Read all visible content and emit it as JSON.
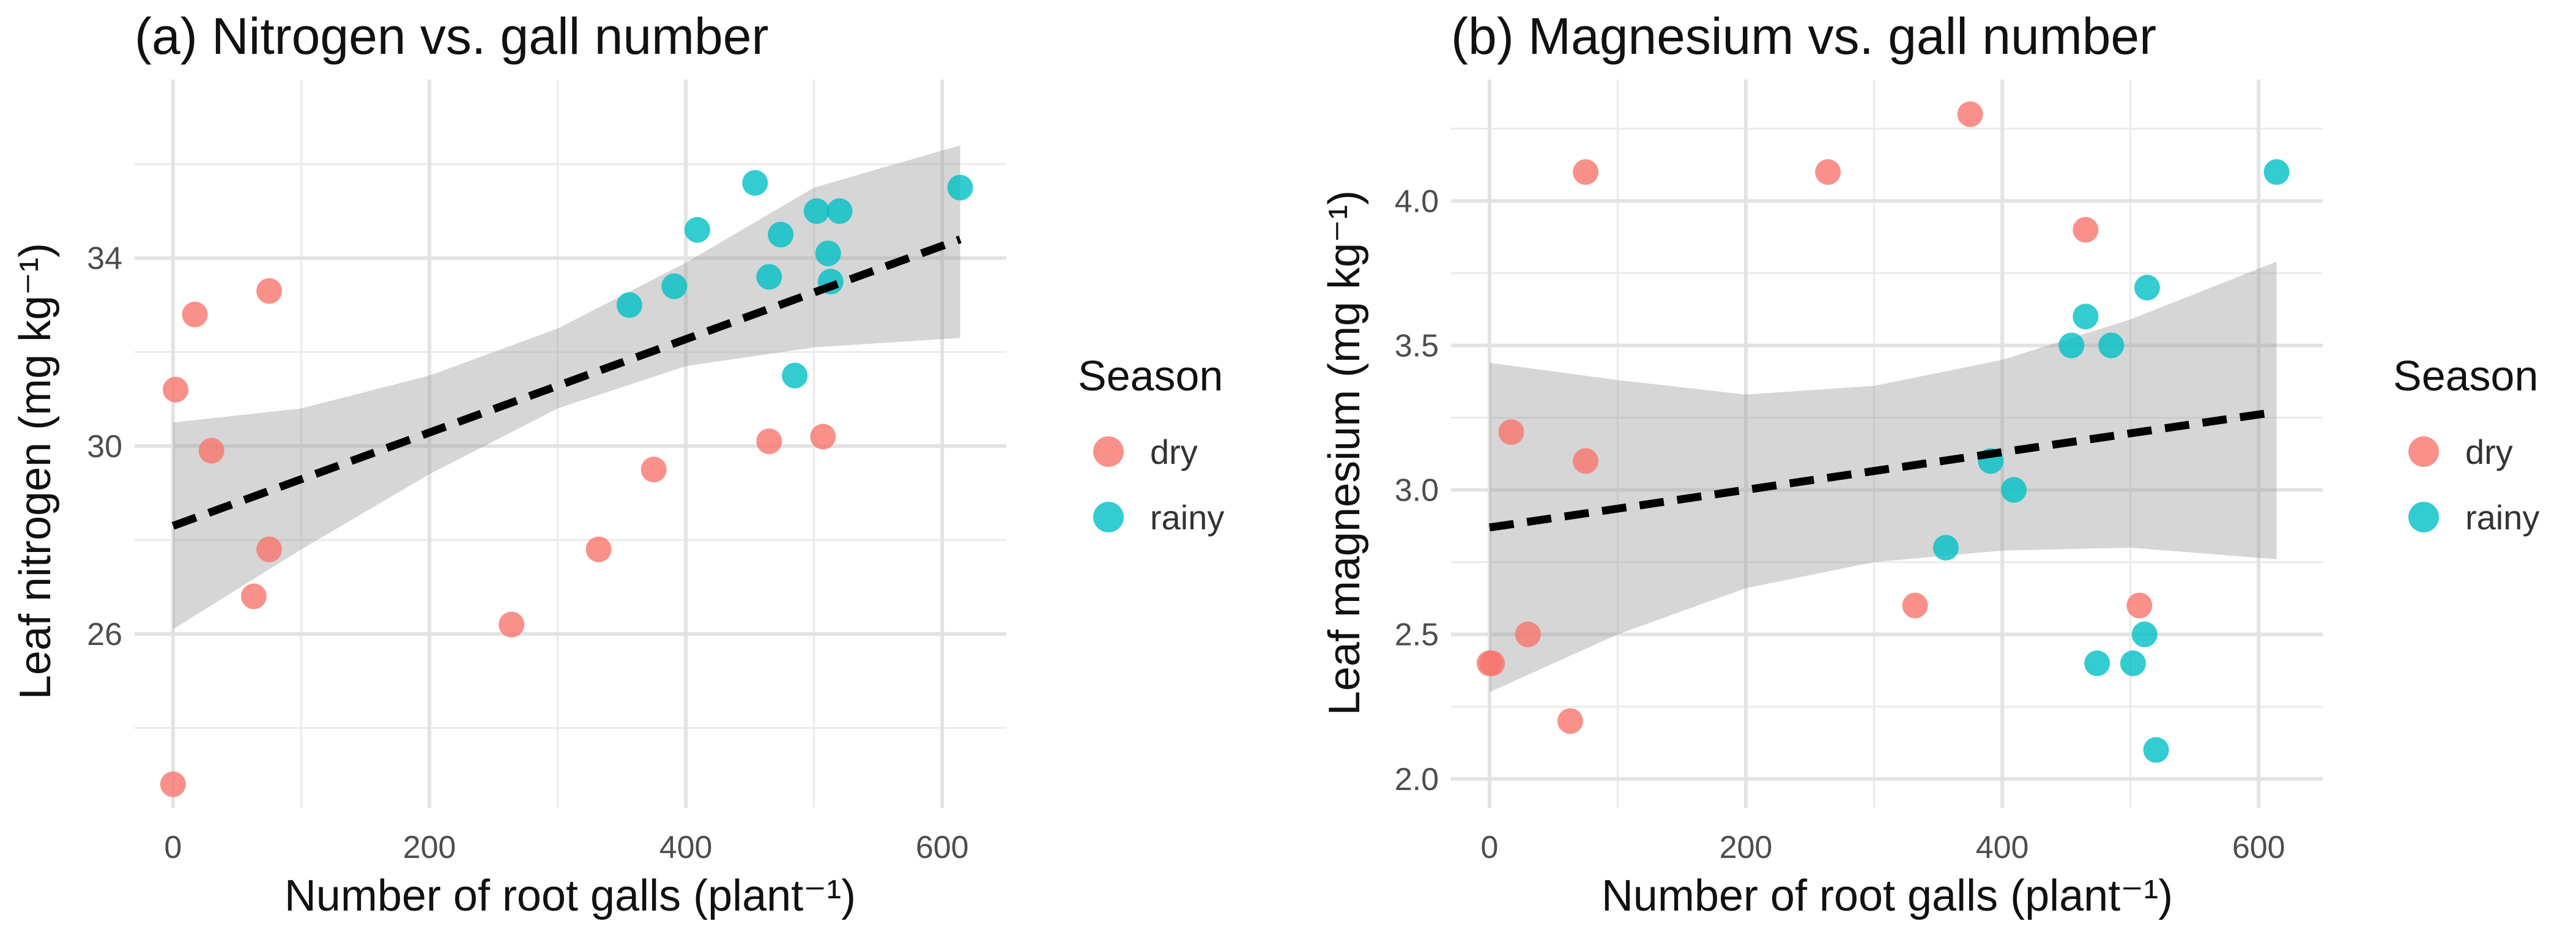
{
  "chart_data": [
    {
      "type": "scatter",
      "title": "(a) Nitrogen vs. gall number",
      "xlabel": "Number of root galls (plant⁻¹)",
      "ylabel": "Leaf nitrogen (mg kg⁻¹)",
      "xlim": [
        -30,
        650
      ],
      "ylim": [
        22.3,
        37.8
      ],
      "x_ticks": [
        0,
        200,
        400,
        600
      ],
      "x_tick_labels": [
        "0",
        "200",
        "400",
        "600"
      ],
      "y_ticks": [
        26,
        30,
        34
      ],
      "y_tick_labels": [
        "26",
        "30",
        "34"
      ],
      "grid": true,
      "legend": {
        "title": "Season",
        "position": "right",
        "entries": [
          "dry",
          "rainy"
        ]
      },
      "series": [
        {
          "name": "dry",
          "color": "#F8766D",
          "x": [
            0,
            2,
            17,
            30,
            63,
            75,
            75,
            264,
            332,
            375,
            465,
            507
          ],
          "y": [
            22.8,
            31.2,
            32.8,
            29.9,
            26.8,
            27.8,
            33.3,
            26.2,
            27.8,
            29.5,
            30.1,
            30.2
          ]
        },
        {
          "name": "rainy",
          "color": "#00BFC4",
          "x": [
            356,
            391,
            409,
            454,
            465,
            474,
            485,
            502,
            511,
            513,
            520,
            614
          ],
          "y": [
            33.0,
            33.4,
            34.6,
            35.6,
            33.6,
            34.5,
            31.5,
            35.0,
            34.1,
            33.5,
            35.0,
            35.5
          ]
        }
      ],
      "fit_line": {
        "style": "dashed",
        "x": [
          0,
          614
        ],
        "y": [
          28.3,
          34.4
        ]
      },
      "confidence_band": {
        "x": [
          0,
          100,
          200,
          300,
          400,
          500,
          614
        ],
        "lower": [
          26.1,
          27.8,
          29.4,
          30.8,
          31.7,
          32.1,
          32.3
        ],
        "upper": [
          30.5,
          30.8,
          31.5,
          32.5,
          33.9,
          35.5,
          36.4
        ]
      }
    },
    {
      "type": "scatter",
      "title": "(b) Magnesium vs. gall number",
      "xlabel": "Number of root galls (plant⁻¹)",
      "ylabel": "Leaf magnesium (mg kg⁻¹)",
      "xlim": [
        -30,
        650
      ],
      "ylim": [
        1.9,
        4.42
      ],
      "x_ticks": [
        0,
        200,
        400,
        600
      ],
      "x_tick_labels": [
        "0",
        "200",
        "400",
        "600"
      ],
      "y_ticks": [
        2.0,
        2.5,
        3.0,
        3.5,
        4.0
      ],
      "y_tick_labels": [
        "2.0",
        "2.5",
        "3.0",
        "3.5",
        "4.0"
      ],
      "grid": true,
      "legend": {
        "title": "Season",
        "position": "right",
        "entries": [
          "dry",
          "rainy"
        ]
      },
      "series": [
        {
          "name": "dry",
          "color": "#F8766D",
          "x": [
            0,
            2,
            17,
            30,
            63,
            75,
            75,
            264,
            332,
            375,
            465,
            507
          ],
          "y": [
            2.4,
            2.4,
            3.2,
            2.5,
            2.2,
            3.1,
            4.1,
            4.1,
            2.6,
            4.3,
            3.9,
            2.6
          ]
        },
        {
          "name": "rainy",
          "color": "#00BFC4",
          "x": [
            356,
            391,
            409,
            454,
            465,
            474,
            485,
            502,
            511,
            513,
            520,
            614
          ],
          "y": [
            2.8,
            3.1,
            3.0,
            3.5,
            3.6,
            2.4,
            3.5,
            2.4,
            2.5,
            3.7,
            2.1,
            4.1
          ]
        }
      ],
      "fit_line": {
        "style": "dashed",
        "x": [
          0,
          614
        ],
        "y": [
          2.87,
          3.27
        ]
      },
      "confidence_band": {
        "x": [
          0,
          100,
          200,
          300,
          400,
          500,
          614
        ],
        "lower": [
          2.3,
          2.5,
          2.66,
          2.75,
          2.79,
          2.8,
          2.76
        ],
        "upper": [
          3.44,
          3.38,
          3.33,
          3.36,
          3.45,
          3.59,
          3.79
        ]
      }
    }
  ]
}
